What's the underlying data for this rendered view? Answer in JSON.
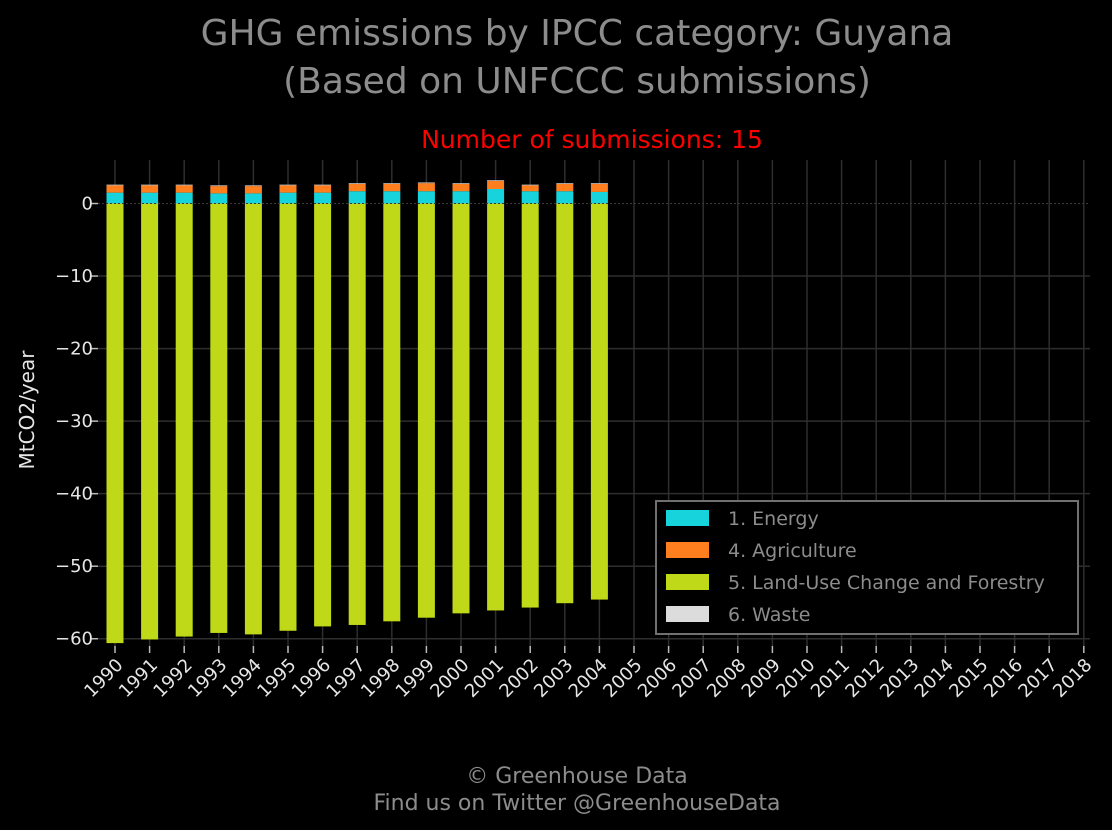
{
  "chart_data": {
    "type": "bar",
    "stacked": true,
    "title": "GHG emissions by IPCC category: Guyana",
    "title_line2": "(Based on UNFCCC submissions)",
    "subtitle": "Number of submissions: 15",
    "ylabel": "MtCO2/year",
    "xlabel": "",
    "ylim": [
      -61,
      6
    ],
    "yticks": [
      0,
      -10,
      -20,
      -30,
      -40,
      -50,
      -60
    ],
    "ytick_labels": [
      "0",
      "−10",
      "−20",
      "−30",
      "−40",
      "−50",
      "−60"
    ],
    "grid": true,
    "legend_position": "bottom-right",
    "categories": [
      "1990",
      "1991",
      "1992",
      "1993",
      "1994",
      "1995",
      "1996",
      "1997",
      "1998",
      "1999",
      "2000",
      "2001",
      "2002",
      "2003",
      "2004",
      "2005",
      "2006",
      "2007",
      "2008",
      "2009",
      "2010",
      "2011",
      "2012",
      "2013",
      "2014",
      "2015",
      "2016",
      "2017",
      "2018"
    ],
    "series": [
      {
        "name": "1. Energy",
        "color": "#17d4dc",
        "values": [
          1.5,
          1.5,
          1.5,
          1.4,
          1.4,
          1.5,
          1.5,
          1.7,
          1.7,
          1.7,
          1.7,
          2.0,
          1.7,
          1.7,
          1.6,
          null,
          null,
          null,
          null,
          null,
          null,
          null,
          null,
          null,
          null,
          null,
          null,
          null,
          null
        ]
      },
      {
        "name": "4. Agriculture",
        "color": "#ff7f1e",
        "values": [
          1.0,
          1.0,
          1.0,
          1.0,
          1.0,
          1.0,
          1.0,
          1.0,
          1.0,
          1.1,
          1.0,
          1.1,
          0.8,
          1.0,
          1.1,
          null,
          null,
          null,
          null,
          null,
          null,
          null,
          null,
          null,
          null,
          null,
          null,
          null,
          null
        ]
      },
      {
        "name": "5. Land-Use Change and Forestry",
        "color": "#bfd817",
        "values": [
          -60.6,
          -60.1,
          -59.7,
          -59.2,
          -59.4,
          -58.9,
          -58.3,
          -58.1,
          -57.6,
          -57.1,
          -56.5,
          -56.1,
          -55.7,
          -55.1,
          -54.6,
          null,
          null,
          null,
          null,
          null,
          null,
          null,
          null,
          null,
          null,
          null,
          null,
          null,
          null
        ]
      },
      {
        "name": "6. Waste",
        "color": "#dcdcdc",
        "values": [
          0.1,
          0.1,
          0.1,
          0.1,
          0.1,
          0.1,
          0.1,
          0.1,
          0.1,
          0.1,
          0.1,
          0.1,
          0.1,
          0.1,
          0.1,
          null,
          null,
          null,
          null,
          null,
          null,
          null,
          null,
          null,
          null,
          null,
          null,
          null,
          null
        ]
      }
    ]
  },
  "footer": {
    "line1": "© Greenhouse Data",
    "line2": "Find us on Twitter @GreenhouseData"
  },
  "colors": {
    "background": "#000000",
    "title": "#8c8c8c",
    "subtitle": "#ff0000",
    "grid": "#2e2e2e",
    "tick_text": "#e6e6e6"
  }
}
